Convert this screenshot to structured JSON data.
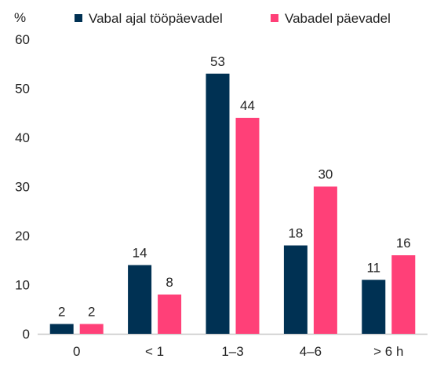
{
  "chart_data": {
    "type": "bar",
    "ylabel": "%",
    "ylim": [
      0,
      60
    ],
    "yticks": [
      0,
      10,
      20,
      30,
      40,
      50,
      60
    ],
    "categories": [
      "0",
      "< 1",
      "1–3",
      "4–6",
      "> 6 h"
    ],
    "series": [
      {
        "name": "Vabal ajal tööpäevadel",
        "color": "#003153",
        "values": [
          2,
          14,
          53,
          18,
          11
        ]
      },
      {
        "name": "Vabadel päevadel",
        "color": "#ff4078",
        "values": [
          2,
          8,
          44,
          30,
          16
        ]
      }
    ],
    "legend_position": "top",
    "grid": false
  }
}
